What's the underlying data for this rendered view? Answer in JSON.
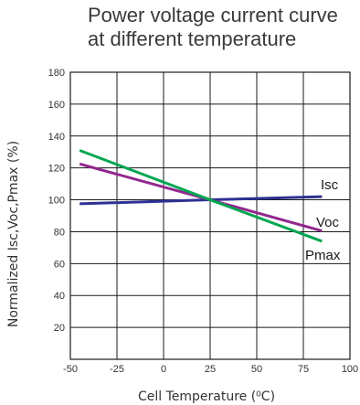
{
  "chart_data": {
    "type": "line",
    "title": "Power voltage current curve at different temperature",
    "title_lines": [
      "Power voltage current curve",
      "at different temperature"
    ],
    "xlabel": "Cell Temperature (⁰C)",
    "ylabel": "Normalized Isc,Voc,Pmax (%)",
    "xlim": [
      -50,
      100
    ],
    "ylim": [
      0,
      180
    ],
    "x_ticks": [
      -50,
      -25,
      0,
      25,
      50,
      75,
      100
    ],
    "x_tick_labels": [
      "-50",
      "-25",
      "0",
      "25",
      "50",
      "75",
      "100"
    ],
    "y_ticks": [
      20,
      40,
      60,
      80,
      100,
      120,
      140,
      160,
      180
    ],
    "y_tick_labels": [
      "20",
      "40",
      "60",
      "80",
      "100",
      "120",
      "140",
      "160",
      "180"
    ],
    "grid": true,
    "series": [
      {
        "name": "Isc",
        "color": "#2e3192",
        "x": [
          -45,
          25,
          85
        ],
        "y": [
          97.5,
          100,
          102
        ]
      },
      {
        "name": "Voc",
        "color": "#92278f",
        "x": [
          -45,
          25,
          85
        ],
        "y": [
          122.5,
          100,
          80.5
        ]
      },
      {
        "name": "Pmax",
        "color": "#00a651",
        "x": [
          -45,
          25,
          85
        ],
        "y": [
          131,
          100,
          74
        ]
      }
    ]
  }
}
